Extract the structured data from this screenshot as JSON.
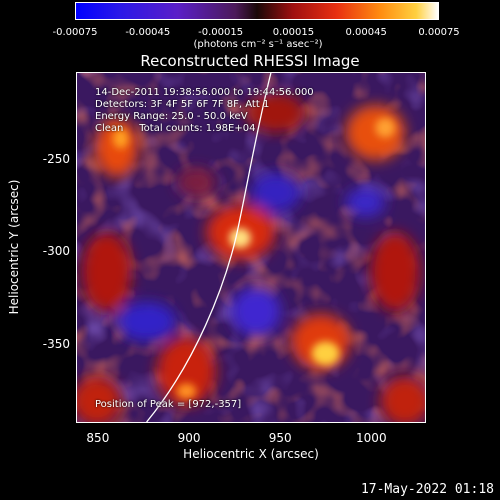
{
  "colorbar": {
    "tick_labels": [
      "-0.00075",
      "-0.00045",
      "-0.00015",
      "0.00015",
      "0.00045",
      "0.00075"
    ],
    "unit_label": "(photons cm⁻² s⁻¹ asec⁻²)"
  },
  "plot": {
    "title": "Reconstructed RHESSI Image",
    "info": {
      "time_range": "14-Dec-2011 19:38:56.000 to 19:44:56.000",
      "detectors": "Detectors: 3F 4F 5F 6F 7F 8F, Att 1",
      "energy_range": "Energy Range: 25.0 - 50.0 keV",
      "clean": "Clean     Total counts: 1.98E+04"
    },
    "peak_position": "Position of Peak = [972,-357]",
    "xlabel": "Heliocentric X (arcsec)",
    "ylabel": "Heliocentric Y (arcsec)",
    "x_ticks": [
      "850",
      "900",
      "950",
      "1000"
    ],
    "y_ticks": [
      "-250",
      "-300",
      "-350"
    ],
    "xlim": [
      838,
      1030
    ],
    "ylim": [
      -393,
      -203
    ]
  },
  "footer": {
    "timestamp": "17-May-2022 01:18"
  },
  "colors": {
    "background": "#000000",
    "limb_line": "#ffffff"
  }
}
